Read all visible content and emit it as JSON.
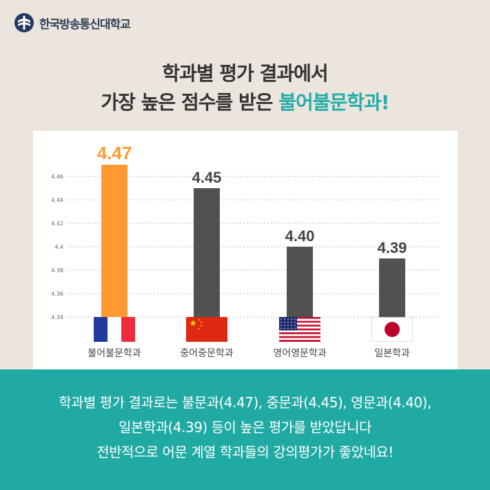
{
  "header": {
    "logo_text": "한국방송통신대학교",
    "logo_icon": "university-emblem-icon"
  },
  "title": {
    "line1": "학과별 평가 결과에서",
    "line2_prefix": "가장 높은 점수를 받은 ",
    "line2_highlight": "불어불문학과!"
  },
  "colors": {
    "background": "#ece5dd",
    "teal": "#21aaa3",
    "highlight_bar": "#ff9a33",
    "bar": "#515151"
  },
  "chart_data": {
    "type": "bar",
    "categories": [
      "불어불문학과",
      "중어중문학과",
      "영어영문학과",
      "일본학과"
    ],
    "values": [
      4.47,
      4.45,
      4.4,
      4.39
    ],
    "value_labels": [
      "4.47",
      "4.45",
      "4.40",
      "4.39"
    ],
    "flags": [
      "france-flag-icon",
      "china-flag-icon",
      "usa-flag-icon",
      "japan-flag-icon"
    ],
    "yticks": [
      "4.34",
      "4.36",
      "4.38",
      "4.4",
      "4.42",
      "4.44",
      "4.46"
    ],
    "ylim": [
      4.34,
      4.47
    ],
    "grid": true,
    "highlight_index": 0,
    "title": "",
    "xlabel": "",
    "ylabel": ""
  },
  "footer": {
    "line1": "학과별 평가 결과로는 불문과(4.47), 중문과(4.45), 영문과(4.40),",
    "line2": "일본학과(4.39) 등이 높은 평가를 받았답니다",
    "line3": "전반적으로 어문 계열 학과들의 강의평가가 좋았네요!"
  }
}
